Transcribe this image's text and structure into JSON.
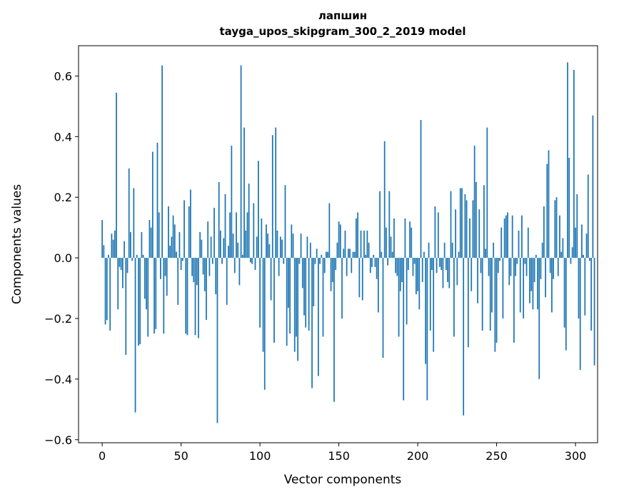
{
  "title": "лапшин",
  "subtitle": "tayga_upos_skipgram_300_2_2019 model",
  "chart_data": {
    "type": "bar",
    "xlabel": "Vector components",
    "ylabel": "Components values",
    "xlim": [
      -15,
      314
    ],
    "ylim": [
      -0.61,
      0.7
    ],
    "xticks": [
      0,
      50,
      100,
      150,
      200,
      250,
      300
    ],
    "yticks": [
      -0.6,
      -0.4,
      -0.2,
      0.0,
      0.2,
      0.4,
      0.6
    ],
    "ytick_labels": [
      "−0.6",
      "−0.4",
      "−0.2",
      "0.0",
      "0.2",
      "0.4",
      "0.6"
    ],
    "bar_color": "#1f77b4",
    "values": [
      0.125,
      0.042,
      -0.22,
      -0.205,
      0.01,
      -0.24,
      0.08,
      0.06,
      0.09,
      0.545,
      -0.17,
      -0.03,
      -0.04,
      -0.1,
      0.055,
      -0.32,
      -0.05,
      0.295,
      0.085,
      -0.01,
      0.23,
      -0.51,
      0.01,
      -0.29,
      -0.285,
      0.085,
      0.01,
      -0.135,
      -0.17,
      -0.26,
      0.125,
      0.1,
      0.35,
      -0.25,
      -0.235,
      0.38,
      0.15,
      -0.07,
      0.635,
      -0.25,
      -0.06,
      -0.125,
      0.17,
      0.04,
      0.07,
      0.14,
      0.11,
      0.02,
      -0.155,
      0.085,
      -0.04,
      -0.01,
      0.19,
      -0.25,
      -0.255,
      0.17,
      0.225,
      -0.06,
      -0.08,
      -0.255,
      -0.09,
      -0.265,
      0.085,
      0.06,
      -0.055,
      -0.11,
      -0.205,
      0.12,
      -0.06,
      0.07,
      -0.02,
      0.165,
      -0.12,
      -0.545,
      0.25,
      0.09,
      -0.02,
      0.065,
      0.21,
      -0.155,
      0.04,
      0.15,
      0.37,
      0.08,
      -0.05,
      0.15,
      0.05,
      -0.09,
      0.635,
      0.01,
      0.43,
      0.09,
      0.15,
      0.245,
      -0.015,
      -0.02,
      0.18,
      -0.04,
      0.07,
      0.32,
      -0.23,
      0.13,
      -0.31,
      -0.435,
      0.11,
      0.08,
      0.045,
      -0.14,
      0.405,
      -0.28,
      0.43,
      0.09,
      -0.06,
      0.07,
      0.06,
      -0.02,
      0.24,
      -0.29,
      -0.165,
      -0.25,
      0.11,
      0.08,
      -0.31,
      -0.26,
      -0.34,
      -0.02,
      0.08,
      -0.1,
      -0.19,
      -0.23,
      0.07,
      -0.24,
      0.05,
      -0.43,
      -0.16,
      -0.02,
      0.03,
      -0.39,
      -0.02,
      0.01,
      -0.26,
      -0.05,
      0.02,
      0.02,
      0.18,
      -0.11,
      -0.08,
      -0.475,
      -0.04,
      0.05,
      0.12,
      0.11,
      -0.2,
      0.03,
      0.09,
      -0.06,
      0.03,
      0.03,
      -0.05,
      0.02,
      0.02,
      0.13,
      0.15,
      -0.13,
      0.09,
      -0.14,
      0.09,
      0.01,
      0.09,
      0.05,
      -0.05,
      -0.03,
      0.01,
      -0.03,
      -0.07,
      -0.18,
      0.22,
      0.02,
      -0.33,
      0.385,
      0.1,
      -0.025,
      0.22,
      0.07,
      0.02,
      0.13,
      -0.05,
      -0.06,
      -0.26,
      -0.11,
      -0.08,
      -0.47,
      0.13,
      -0.22,
      -0.04,
      0.12,
      0.1,
      -0.06,
      -0.02,
      -0.12,
      -0.11,
      -0.17,
      0.455,
      -0.08,
      0.02,
      -0.35,
      -0.47,
      0.05,
      -0.24,
      -0.04,
      -0.31,
      0.17,
      -0.05,
      0.15,
      -0.03,
      -0.04,
      -0.1,
      0.05,
      -0.04,
      -0.08,
      -0.1,
      0.22,
      0.05,
      -0.26,
      0.16,
      -0.09,
      0.02,
      0.23,
      0.23,
      -0.52,
      0.21,
      0.19,
      -0.295,
      0.13,
      -0.11,
      0.19,
      0.37,
      0.25,
      -0.15,
      0.16,
      -0.05,
      -0.24,
      0.24,
      0.03,
      0.43,
      -0.06,
      -0.24,
      -0.18,
      0.05,
      -0.31,
      -0.28,
      -0.05,
      -0.01,
      0.1,
      -0.2,
      0.13,
      0.14,
      0.15,
      -0.09,
      -0.06,
      0.14,
      -0.28,
      -0.06,
      -0.02,
      0.09,
      -0.18,
      0.14,
      -0.2,
      -0.02,
      -0.06,
      0.1,
      -0.15,
      -0.11,
      -0.17,
      -0.08,
      0.01,
      -0.17,
      -0.4,
      -0.07,
      0.05,
      0.17,
      -0.13,
      0.31,
      0.355,
      -0.05,
      -0.18,
      -0.07,
      0.19,
      0.2,
      -0.06,
      0.14,
      0.02,
      0.065,
      -0.23,
      -0.305,
      0.645,
      0.33,
      -0.02,
      0.035,
      0.62,
      0.1,
      0.21,
      -0.2,
      -0.37,
      0.11,
      0.01,
      -0.19,
      0.08,
      0.275,
      -0.01,
      -0.24,
      0.47,
      -0.355,
      0.0
    ]
  }
}
